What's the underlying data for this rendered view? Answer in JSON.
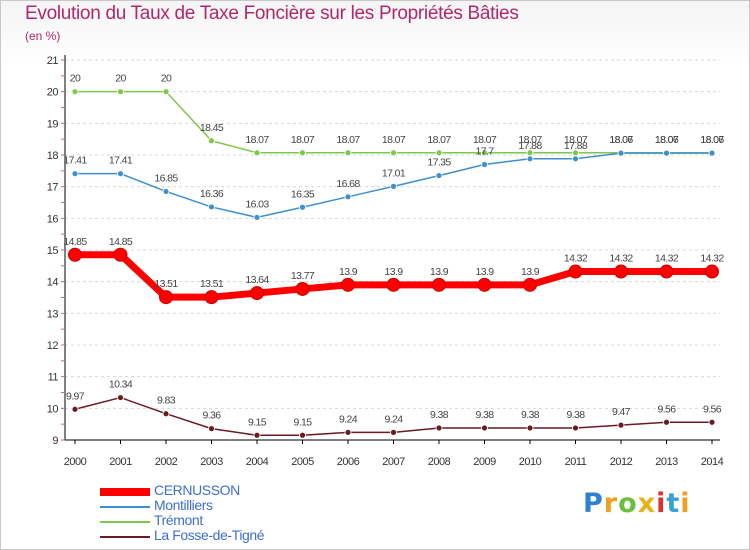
{
  "page": {
    "title": "Evolution du Taux de Taxe Foncière sur les Propriétés Bâties",
    "subtitle": "(en %)",
    "logo": "Proxiti"
  },
  "chart_data": {
    "type": "line",
    "title": "Evolution du Taux de Taxe Foncière sur les Propriétés Bâties",
    "ylabel": "(en %)",
    "xlabel": "",
    "x": [
      "2000",
      "2001",
      "2002",
      "2003",
      "2004",
      "2005",
      "2006",
      "2007",
      "2008",
      "2009",
      "2010",
      "2011",
      "2012",
      "2013",
      "2014"
    ],
    "ylim": [
      9,
      21
    ],
    "yticks": [
      9,
      10,
      11,
      12,
      13,
      14,
      15,
      16,
      17,
      18,
      19,
      20,
      21
    ],
    "grid": "horizontal dashed",
    "legend_position": "bottom-left",
    "series": [
      {
        "name": "CERNUSSON",
        "color": "#ff0000",
        "values": [
          14.85,
          14.85,
          13.51,
          13.51,
          13.64,
          13.77,
          13.9,
          13.9,
          13.9,
          13.9,
          13.9,
          14.32,
          14.32,
          14.32,
          14.32
        ],
        "labels": [
          "14.85",
          "14.85",
          "13.51",
          "13.51",
          "13.64",
          "13.77",
          "13.9",
          "13.9",
          "13.9",
          "13.9",
          "13.9",
          "14.32",
          "14.32",
          "14.32",
          "14.32"
        ]
      },
      {
        "name": "Montilliers",
        "color": "#3d8fd0",
        "values": [
          17.41,
          17.41,
          16.85,
          16.36,
          16.03,
          16.35,
          16.68,
          17.01,
          17.35,
          17.7,
          17.88,
          17.88,
          18.06,
          18.06,
          18.06
        ],
        "labels": [
          "17.41",
          "17.41",
          "16.85",
          "16.36",
          "16.03",
          "16.35",
          "16.68",
          "17.01",
          "17.35",
          "17.7",
          "17.88",
          "17.88",
          "18.06",
          "18.06",
          "18.06"
        ]
      },
      {
        "name": "Trémont",
        "color": "#7cc84a",
        "values": [
          20,
          20,
          20,
          18.45,
          18.07,
          18.07,
          18.07,
          18.07,
          18.07,
          18.07,
          18.07,
          18.07,
          18.07,
          18.07,
          18.07
        ],
        "labels": [
          "20",
          "20",
          "20",
          "18.45",
          "18.07",
          "18.07",
          "18.07",
          "18.07",
          "18.07",
          "18.07",
          "18.07",
          "18.07",
          "18.07",
          "18.07",
          "18.07"
        ]
      },
      {
        "name": "La Fosse-de-Tigné",
        "color": "#6b1a22",
        "values": [
          9.97,
          10.34,
          9.83,
          9.36,
          9.15,
          9.15,
          9.24,
          9.24,
          9.38,
          9.38,
          9.38,
          9.38,
          9.47,
          9.56,
          9.56
        ],
        "labels": [
          "9.97",
          "10.34",
          "9.83",
          "9.36",
          "9.15",
          "9.15",
          "9.24",
          "9.24",
          "9.38",
          "9.38",
          "9.38",
          "9.38",
          "9.47",
          "9.56",
          "9.56"
        ]
      }
    ]
  },
  "legend": [
    {
      "label": "CERNUSSON",
      "color": "#ff0000"
    },
    {
      "label": "Montilliers",
      "color": "#3d8fd0"
    },
    {
      "label": "Trémont",
      "color": "#7cc84a"
    },
    {
      "label": "La Fosse-de-Tigné",
      "color": "#6b1a22"
    }
  ],
  "logo_colors": [
    "#2f7fd4",
    "#f0a020",
    "#6cbf3c",
    "#e8b41a",
    "#d8342a",
    "#3aa0d8",
    "#f0a020"
  ]
}
